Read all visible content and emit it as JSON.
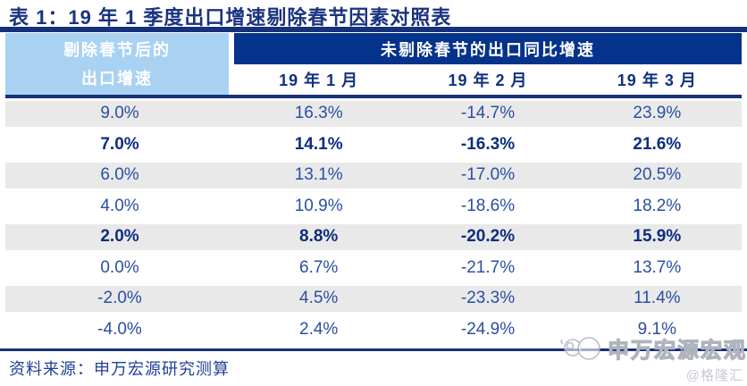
{
  "title": "表 1：19 年 1 季度出口增速剔除春节因素对照表",
  "table": {
    "left_header": [
      "剔除春节后的",
      "出口增速"
    ],
    "group_header": "未剔除春节的出口同比增速",
    "sub_headers": [
      "19 年 1 月",
      "19 年 2 月",
      "19 年 3 月"
    ],
    "rows": [
      {
        "values": [
          "9.0%",
          "16.3%",
          "-14.7%",
          "23.9%"
        ],
        "bold": false
      },
      {
        "values": [
          "7.0%",
          "14.1%",
          "-16.3%",
          "21.6%"
        ],
        "bold": true
      },
      {
        "values": [
          "6.0%",
          "13.1%",
          "-17.0%",
          "20.5%"
        ],
        "bold": false
      },
      {
        "values": [
          "4.0%",
          "10.9%",
          "-18.6%",
          "18.2%"
        ],
        "bold": false
      },
      {
        "values": [
          "2.0%",
          "8.8%",
          "-20.2%",
          "15.9%"
        ],
        "bold": true
      },
      {
        "values": [
          "0.0%",
          "6.7%",
          "-21.7%",
          "13.7%"
        ],
        "bold": false
      },
      {
        "values": [
          "-2.0%",
          "4.5%",
          "-23.3%",
          "11.4%"
        ],
        "bold": false
      },
      {
        "values": [
          "-4.0%",
          "2.4%",
          "-24.9%",
          "9.1%"
        ],
        "bold": false
      }
    ]
  },
  "chart_data": {
    "type": "table",
    "title": "表 1：19 年 1 季度出口增速剔除春节因素对照表",
    "column_group_header": "未剔除春节的出口同比增速",
    "columns": [
      "剔除春节后的出口增速",
      "19 年 1 月",
      "19 年 2 月",
      "19 年 3 月"
    ],
    "rows": [
      [
        "9.0%",
        "16.3%",
        "-14.7%",
        "23.9%"
      ],
      [
        "7.0%",
        "14.1%",
        "-16.3%",
        "21.6%"
      ],
      [
        "6.0%",
        "13.1%",
        "-17.0%",
        "20.5%"
      ],
      [
        "4.0%",
        "10.9%",
        "-18.6%",
        "18.2%"
      ],
      [
        "2.0%",
        "8.8%",
        "-20.2%",
        "15.9%"
      ],
      [
        "0.0%",
        "6.7%",
        "-21.7%",
        "13.7%"
      ],
      [
        "-2.0%",
        "4.5%",
        "-23.3%",
        "11.4%"
      ],
      [
        "-4.0%",
        "2.4%",
        "-24.9%",
        "9.1%"
      ]
    ],
    "bold_rows": [
      1,
      4
    ]
  },
  "footer": {
    "source_label": "资料来源：申万宏源研究测算"
  },
  "watermark": {
    "brand": "申万宏源宏观",
    "handle": "@格隆汇"
  },
  "colors": {
    "navy": "#16307A",
    "header_blue": "#04338C",
    "light_blue": "#A9D2F2",
    "data_text": "#2A4FA2",
    "bold_text": "#0D2D7D",
    "stripe_gray": "#E9E9E9"
  }
}
